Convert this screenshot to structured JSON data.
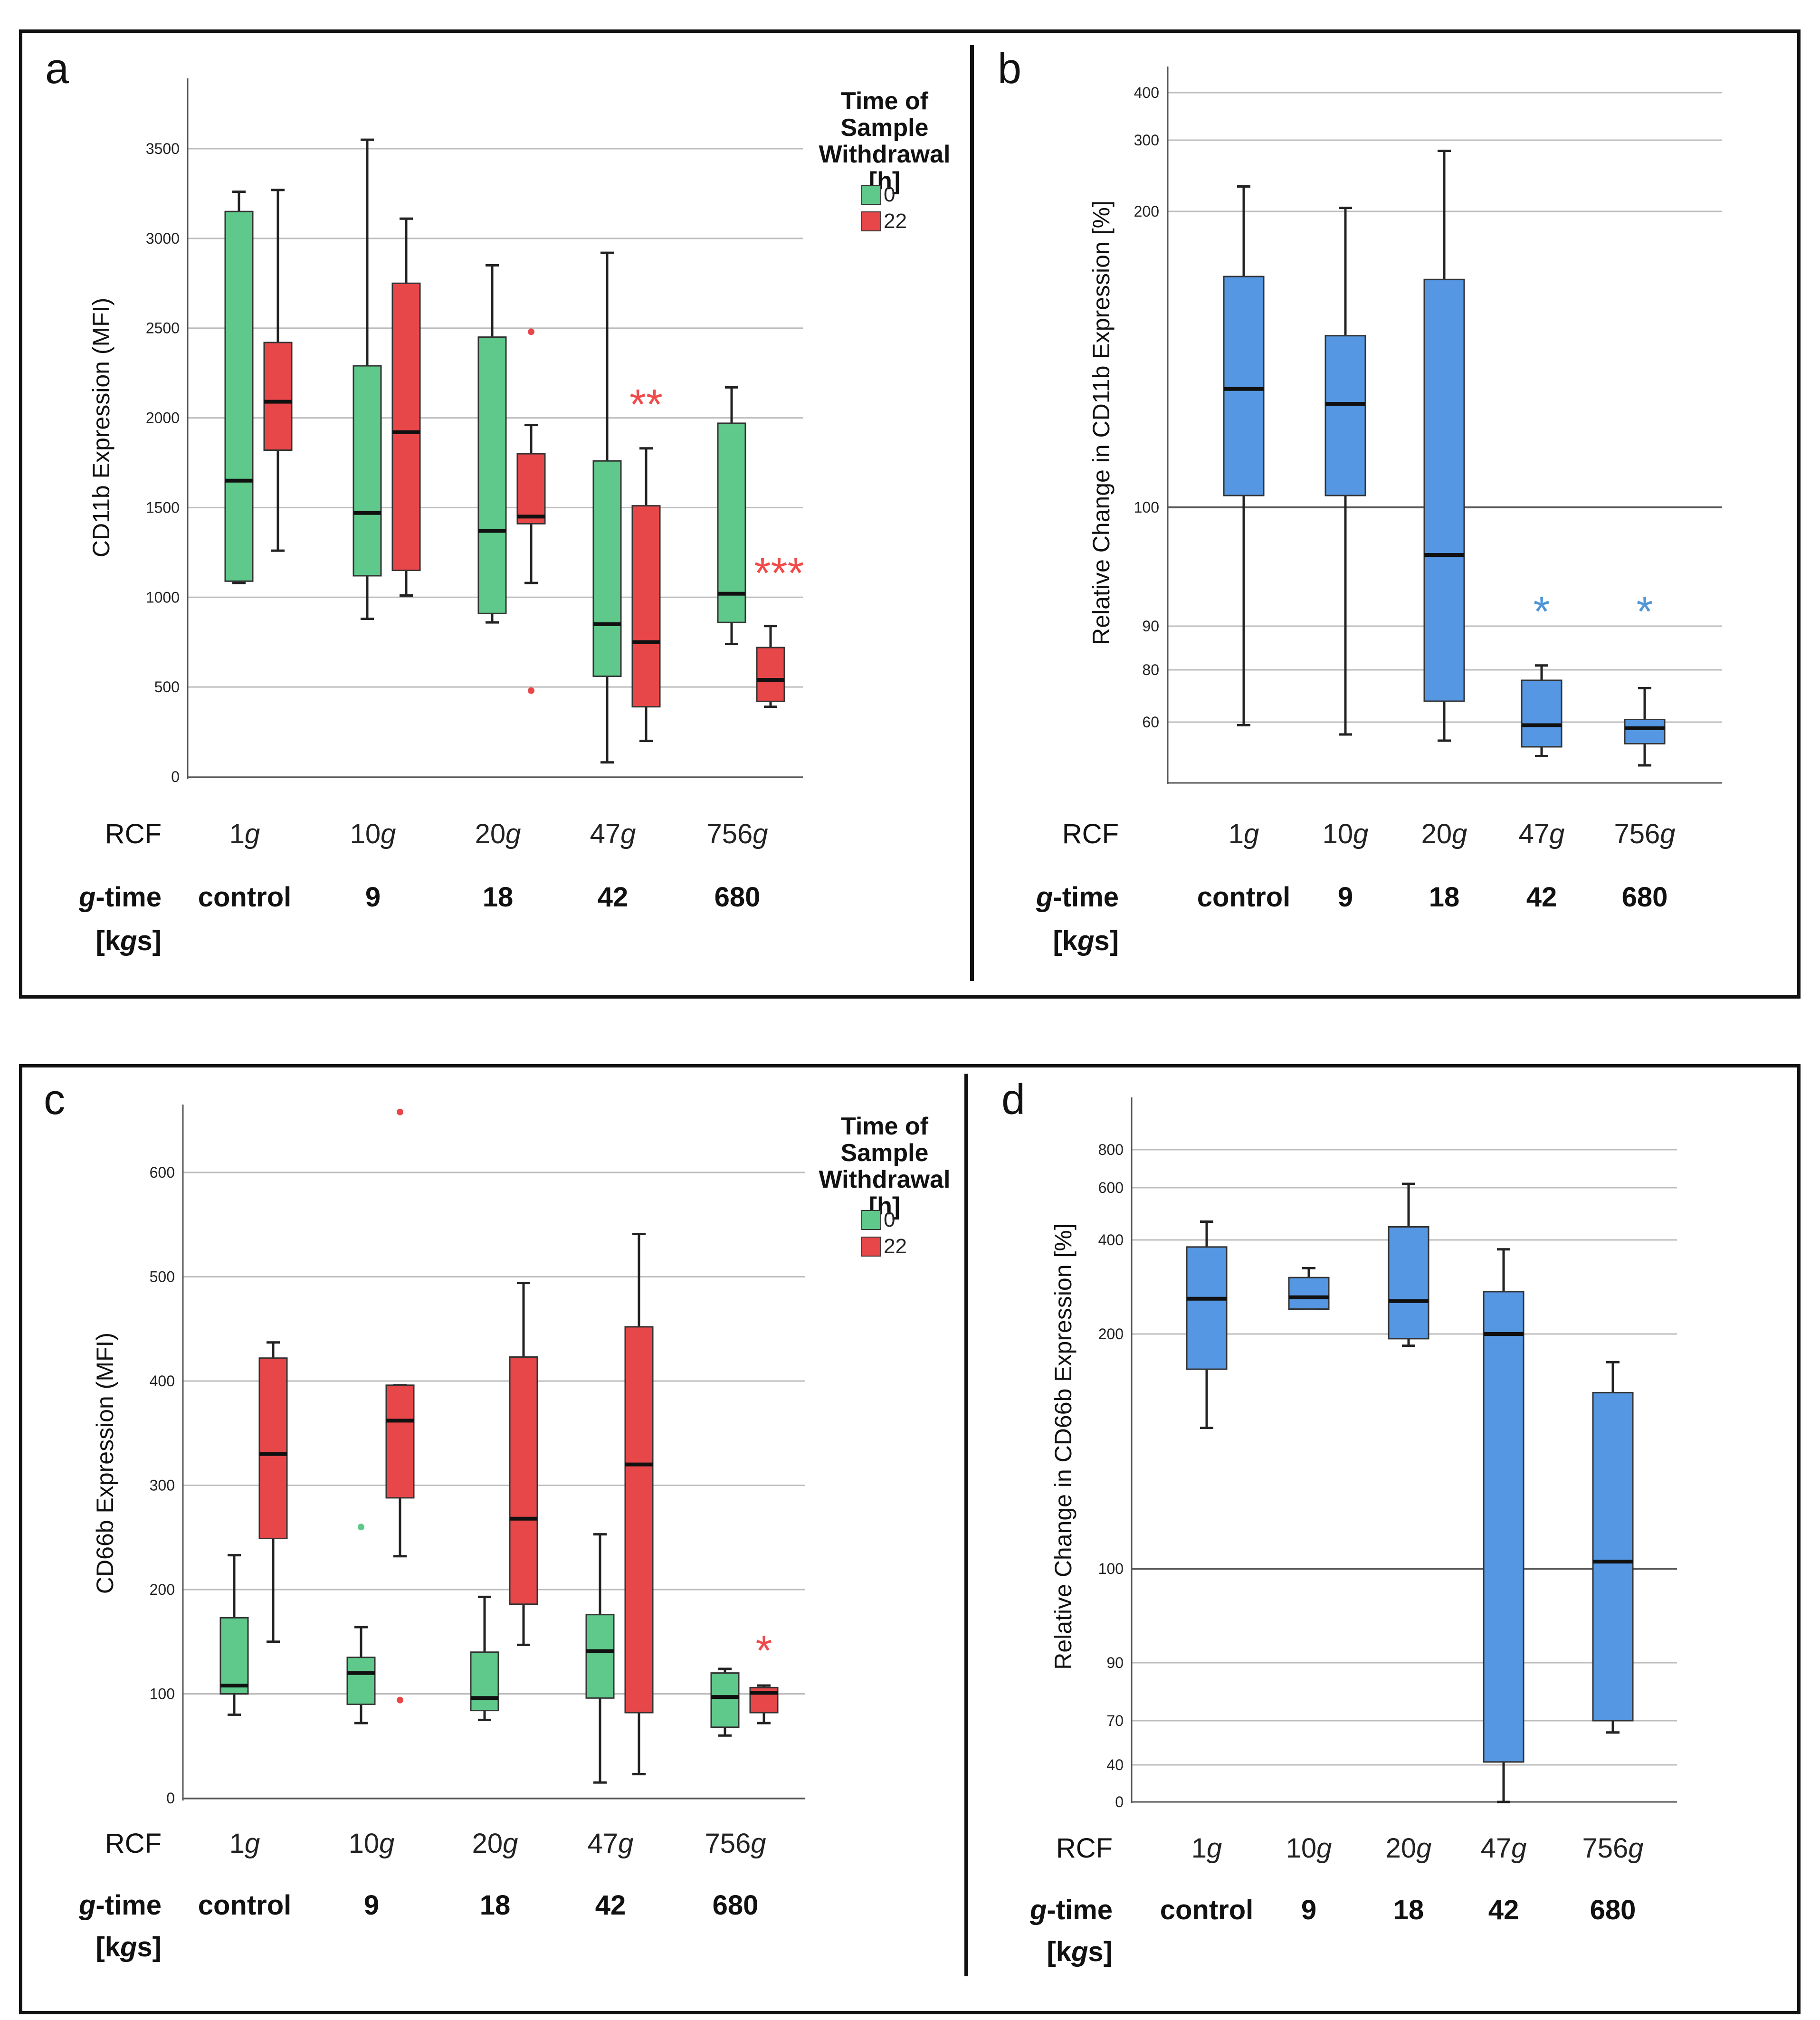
{
  "colors": {
    "green": "#5ec98a",
    "red": "#e8474a",
    "blue": "#5597e2",
    "sig_red": "#f04a4a",
    "sig_blue": "#4f95d8"
  },
  "rows": {
    "rcf_label": "RCF",
    "gtime_label_g": "g",
    "gtime_label_rest": "-time",
    "gtime_unit_open": "[k",
    "gtime_unit_g": "g",
    "gtime_unit_close": "s]",
    "rcf_values": [
      {
        "num": "1",
        "unit": "g"
      },
      {
        "num": "10",
        "unit": "g"
      },
      {
        "num": "20",
        "unit": "g"
      },
      {
        "num": "47",
        "unit": "g"
      },
      {
        "num": "756",
        "unit": "g"
      }
    ],
    "gtime_values": [
      "control",
      "9",
      "18",
      "42",
      "680"
    ]
  },
  "legend": {
    "title_lines": [
      "Time of",
      "Sample",
      "Withdrawal",
      "[h]"
    ],
    "entries": [
      {
        "label": "0",
        "color": "#5ec98a"
      },
      {
        "label": "22",
        "color": "#e8474a"
      }
    ]
  },
  "chart_data": [
    {
      "panel": "a",
      "type": "box",
      "ylabel": "CD11b Expression (MFI)",
      "ylim": [
        0,
        3900
      ],
      "yticks": [
        0,
        500,
        1000,
        1500,
        2000,
        2500,
        3000,
        3500
      ],
      "categories": [
        "1g",
        "10g",
        "20g",
        "47g",
        "756g"
      ],
      "series": [
        {
          "name": "0",
          "color": "#5ec98a",
          "boxes": [
            {
              "min": 1080,
              "q1": 1090,
              "median": 1650,
              "q3": 3150,
              "max": 3260,
              "outliers": []
            },
            {
              "min": 880,
              "q1": 1120,
              "median": 1470,
              "q3": 2290,
              "max": 3550,
              "outliers": []
            },
            {
              "min": 860,
              "q1": 910,
              "median": 1370,
              "q3": 2450,
              "max": 2850,
              "outliers": []
            },
            {
              "min": 80,
              "q1": 560,
              "median": 850,
              "q3": 1760,
              "max": 2920,
              "outliers": []
            },
            {
              "min": 740,
              "q1": 860,
              "median": 1020,
              "q3": 1970,
              "max": 2170,
              "outliers": []
            }
          ]
        },
        {
          "name": "22",
          "color": "#e8474a",
          "boxes": [
            {
              "min": 1260,
              "q1": 1820,
              "median": 2090,
              "q3": 2420,
              "max": 3270,
              "outliers": []
            },
            {
              "min": 1010,
              "q1": 1150,
              "median": 1920,
              "q3": 2750,
              "max": 3110,
              "outliers": []
            },
            {
              "min": 1080,
              "q1": 1410,
              "median": 1450,
              "q3": 1800,
              "max": 1960,
              "outliers": [
                2480,
                480
              ]
            },
            {
              "min": 200,
              "q1": 390,
              "median": 750,
              "q3": 1510,
              "max": 1830,
              "outliers": []
            },
            {
              "min": 390,
              "q1": 420,
              "median": 540,
              "q3": 720,
              "max": 840,
              "outliers": []
            }
          ]
        }
      ],
      "annotations": [
        {
          "category": "47g",
          "series": "22",
          "text": "**",
          "value": 2100
        },
        {
          "category": "756g",
          "series": "22",
          "text": "***",
          "value": 1160
        }
      ]
    },
    {
      "panel": "b",
      "type": "box",
      "ylabel": "Relative Change in CD11b Expression [%]",
      "yticks": [
        60,
        80,
        90,
        100,
        200,
        300,
        400
      ],
      "categories": [
        "1g",
        "10g",
        "20g",
        "47g",
        "756g"
      ],
      "series": [
        {
          "name": "relative",
          "color": "#5597e2",
          "boxes": [
            {
              "min": 59,
              "q1": 104,
              "median": 140,
              "q3": 178,
              "max": 235,
              "outliers": []
            },
            {
              "min": 56,
              "q1": 104,
              "median": 135,
              "q3": 158,
              "max": 205,
              "outliers": []
            },
            {
              "min": 54,
              "q1": 68,
              "median": 96,
              "q3": 177,
              "max": 285,
              "outliers": []
            },
            {
              "min": 49,
              "q1": 52,
              "median": 59,
              "q3": 76,
              "max": 81,
              "outliers": []
            },
            {
              "min": 46,
              "q1": 53,
              "median": 58,
              "q3": 61,
              "max": 73,
              "outliers": []
            }
          ]
        }
      ],
      "reference_line": 100,
      "annotations": [
        {
          "category": "47g",
          "text": "*",
          "value": 92
        },
        {
          "category": "756g",
          "text": "*",
          "value": 92
        }
      ]
    },
    {
      "panel": "c",
      "type": "box",
      "ylabel": "CD66b Expression (MFI)",
      "ylim": [
        0,
        665
      ],
      "yticks": [
        0,
        100,
        200,
        300,
        400,
        500,
        600
      ],
      "categories": [
        "1g",
        "10g",
        "20g",
        "47g",
        "756g"
      ],
      "series": [
        {
          "name": "0",
          "color": "#5ec98a",
          "boxes": [
            {
              "min": 80,
              "q1": 100,
              "median": 108,
              "q3": 173,
              "max": 233,
              "outliers": []
            },
            {
              "min": 72,
              "q1": 90,
              "median": 120,
              "q3": 135,
              "max": 164,
              "outliers": [
                260
              ]
            },
            {
              "min": 75,
              "q1": 84,
              "median": 96,
              "q3": 140,
              "max": 193,
              "outliers": []
            },
            {
              "min": 15,
              "q1": 96,
              "median": 141,
              "q3": 176,
              "max": 253,
              "outliers": []
            },
            {
              "min": 60,
              "q1": 68,
              "median": 97,
              "q3": 120,
              "max": 124,
              "outliers": []
            }
          ]
        },
        {
          "name": "22",
          "color": "#e8474a",
          "boxes": [
            {
              "min": 150,
              "q1": 249,
              "median": 330,
              "q3": 422,
              "max": 437,
              "outliers": []
            },
            {
              "min": 232,
              "q1": 288,
              "median": 362,
              "q3": 396,
              "max": 396,
              "outliers": [
                658,
                94
              ]
            },
            {
              "min": 147,
              "q1": 186,
              "median": 268,
              "q3": 423,
              "max": 494,
              "outliers": []
            },
            {
              "min": 23,
              "q1": 82,
              "median": 320,
              "q3": 452,
              "max": 541,
              "outliers": []
            },
            {
              "min": 72,
              "q1": 82,
              "median": 101,
              "q3": 106,
              "max": 108,
              "outliers": []
            }
          ]
        }
      ],
      "annotations": [
        {
          "category": "756g",
          "series": "22",
          "text": "*",
          "value": 148
        }
      ]
    },
    {
      "panel": "d",
      "type": "box",
      "ylabel": "Relative Change in CD66b Expression [%]",
      "yticks": [
        0,
        40,
        70,
        90,
        100,
        200,
        400,
        600,
        800
      ],
      "categories": [
        "1g",
        "10g",
        "20g",
        "47g",
        "756g"
      ],
      "series": [
        {
          "name": "relative",
          "color": "#5597e2",
          "boxes": [
            {
              "min": 160,
              "q1": 185,
              "median": 275,
              "q3": 385,
              "max": 470,
              "outliers": []
            },
            {
              "min": 253,
              "q1": 253,
              "median": 278,
              "q3": 320,
              "max": 340,
              "outliers": []
            },
            {
              "min": 195,
              "q1": 198,
              "median": 270,
              "q3": 450,
              "max": 620,
              "outliers": []
            },
            {
              "min": 0,
              "q1": 42,
              "median": 200,
              "q3": 290,
              "max": 380,
              "outliers": []
            },
            {
              "min": 62,
              "q1": 70,
              "median": 103,
              "q3": 175,
              "max": 188,
              "outliers": []
            }
          ]
        }
      ],
      "reference_line": 100
    }
  ]
}
